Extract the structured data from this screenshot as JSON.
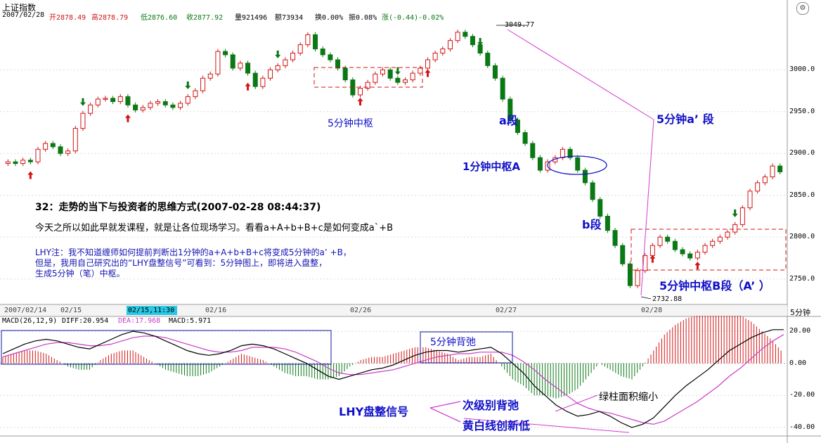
{
  "window": {
    "title": "上证指数",
    "period": "5分钟"
  },
  "header": {
    "date": "2007/02/28",
    "open_label": "开2878.49",
    "high_label": "高2878.79",
    "low_label": "低2876.60",
    "close_label": "收2877.92",
    "volume_label": "量921496",
    "amount_label": "额73934",
    "turnover_label": "换0.00%",
    "amplitude_label": "振0.08%",
    "change_label": "涨(-0.44)-0.02%"
  },
  "price_axis": {
    "ticks": [
      "3000.0",
      "2950.0",
      "2900.0",
      "2850.0",
      "2800.0",
      "2750.0"
    ],
    "high_marker": "3049.77",
    "low_marker": "2732.88"
  },
  "time_axis": {
    "labels": [
      "2007/02/14",
      "02/15",
      "02/15,11:30",
      "02/16",
      "02/26",
      "02/27",
      "02/28"
    ]
  },
  "macd_header": {
    "params": "MACD(26,12,9)",
    "diff": "DIFF:20.954",
    "dea": "DEA:17.968",
    "macd": "MACD:5.971"
  },
  "macd_axis": {
    "ticks": [
      "20.00",
      "0.00",
      "-20.00",
      "-40.00"
    ]
  },
  "annotations": {
    "hub_5min": "5分钟中枢",
    "seg_a": "a段",
    "hub_1min_a": "1分钟中枢A",
    "seg_b": "b段",
    "seg_a_prime": "5分钟a’ 段",
    "hub_5min_b": "5分钟中枢B段（A’ ）",
    "divergence_5min": "5分钟背弛",
    "lhy_signal": "LHY盘整信号",
    "sub_divergence": "次级别背弛",
    "macd_new_low": "黄白线创新低",
    "bar_area_shrink": "绿柱面积缩小"
  },
  "article": {
    "title": "32：走势的当下与投资者的思维方式(2007-02-28 08:44:37)",
    "body": "今天之所以如此早就发课程，就是让各位现场学习。看看a+A+b+B+c是如何变成a`+B",
    "note_line1": "LHY注：我不知道缠师如何提前判断出1分钟的a+A+b+B+c将变成5分钟的a’ +B，",
    "note_line2": "但是，我用自己研究出的“LHY盘整信号”可看到：5分钟图上，即将进入盘整，",
    "note_line3": "生成5分钟（笔）中枢。"
  },
  "colors": {
    "up": "#d21414",
    "down": "#0a7814",
    "annotation": "#1414c8",
    "magenta": "#d23cd2",
    "dea": "#c83cc8",
    "diff": "#000000"
  },
  "chart_data": [
    {
      "type": "candlestick",
      "title": "上证指数",
      "period": "5分钟",
      "ylim": [
        2722,
        3065
      ],
      "y_ticks": [
        3000,
        2950,
        2900,
        2850,
        2800,
        2750
      ],
      "high": 3049.77,
      "low": 2732.88,
      "last_bar": {
        "open": 2878.49,
        "high": 2878.79,
        "low": 2876.6,
        "close": 2877.92
      },
      "close_path": [
        2890,
        2888,
        2892,
        2890,
        2905,
        2912,
        2908,
        2900,
        2903,
        2930,
        2948,
        2958,
        2965,
        2966,
        2962,
        2968,
        2958,
        2952,
        2955,
        2960,
        2962,
        2958,
        2955,
        2960,
        2968,
        2975,
        2990,
        2995,
        3022,
        3018,
        3002,
        3008,
        2996,
        2980,
        2990,
        3000,
        3005,
        3012,
        3020,
        3030,
        3042,
        3025,
        3018,
        3012,
        3002,
        2988,
        2970,
        2978,
        2985,
        2995,
        3000,
        2990,
        2985,
        2988,
        2996,
        3002,
        3012,
        3020,
        3025,
        3035,
        3045,
        3040,
        3030,
        3020,
        3005,
        2990,
        2965,
        2940,
        2925,
        2912,
        2895,
        2880,
        2890,
        2895,
        2905,
        2895,
        2880,
        2865,
        2845,
        2825,
        2808,
        2790,
        2768,
        2742,
        2760,
        2778,
        2790,
        2800,
        2795,
        2785,
        2780,
        2775,
        2782,
        2790,
        2795,
        2800,
        2806,
        2815,
        2835,
        2855,
        2865,
        2872,
        2885,
        2878
      ],
      "signals_down": [
        10,
        24,
        36,
        52,
        63,
        97
      ],
      "signals_up": [
        3,
        16,
        32,
        47,
        56,
        86,
        92
      ]
    },
    {
      "type": "line",
      "title": "MACD(26,12,9)",
      "ylim": [
        -44,
        24
      ],
      "y_ticks": [
        20,
        0,
        -20,
        -40
      ],
      "last_values": {
        "DIFF": 20.954,
        "DEA": 17.968,
        "MACD": 5.971
      },
      "series": [
        {
          "name": "DIFF",
          "values": [
            6,
            9,
            12,
            14,
            15,
            14,
            12,
            10,
            9,
            12,
            15,
            18,
            20,
            19,
            17,
            14,
            11,
            8,
            6,
            5,
            6,
            8,
            11,
            12,
            11,
            9,
            6,
            3,
            0,
            -4,
            -8,
            -10,
            -8,
            -6,
            -4,
            -3,
            -1,
            2,
            5,
            7,
            8,
            8,
            7,
            8,
            9,
            10,
            6,
            0,
            -6,
            -14,
            -20,
            -26,
            -30,
            -33,
            -32,
            -30,
            -33,
            -37,
            -40,
            -38,
            -34,
            -27,
            -20,
            -14,
            -9,
            -4,
            2,
            8,
            12,
            16,
            19,
            21,
            21
          ]
        },
        {
          "name": "DEA",
          "values": [
            4,
            6,
            8,
            10,
            12,
            13,
            13,
            12,
            11,
            11,
            12,
            14,
            16,
            17,
            17,
            16,
            14,
            12,
            10,
            8,
            7,
            7,
            8,
            10,
            10,
            10,
            9,
            7,
            4,
            1,
            -3,
            -6,
            -7,
            -7,
            -6,
            -5,
            -4,
            -2,
            0,
            2,
            4,
            5,
            6,
            6,
            7,
            7,
            7,
            5,
            1,
            -4,
            -10,
            -15,
            -20,
            -25,
            -28,
            -30,
            -31,
            -33,
            -35,
            -37,
            -38,
            -36,
            -32,
            -28,
            -24,
            -19,
            -14,
            -8,
            -3,
            3,
            9,
            14,
            18
          ]
        },
        {
          "name": "MACD",
          "values": [
            4,
            6,
            8,
            8,
            6,
            2,
            -2,
            -4,
            -4,
            2,
            6,
            8,
            8,
            4,
            0,
            -4,
            -6,
            -8,
            -8,
            -6,
            -2,
            2,
            6,
            4,
            2,
            -2,
            -6,
            -8,
            -8,
            -10,
            -10,
            -8,
            -2,
            2,
            4,
            4,
            6,
            8,
            10,
            10,
            8,
            6,
            2,
            4,
            4,
            6,
            -2,
            -10,
            -14,
            -20,
            -20,
            -22,
            -20,
            -16,
            -8,
            0,
            -4,
            -8,
            -10,
            -2,
            8,
            18,
            24,
            28,
            30,
            30,
            32,
            32,
            30,
            26,
            20,
            14,
            6
          ]
        }
      ]
    }
  ]
}
